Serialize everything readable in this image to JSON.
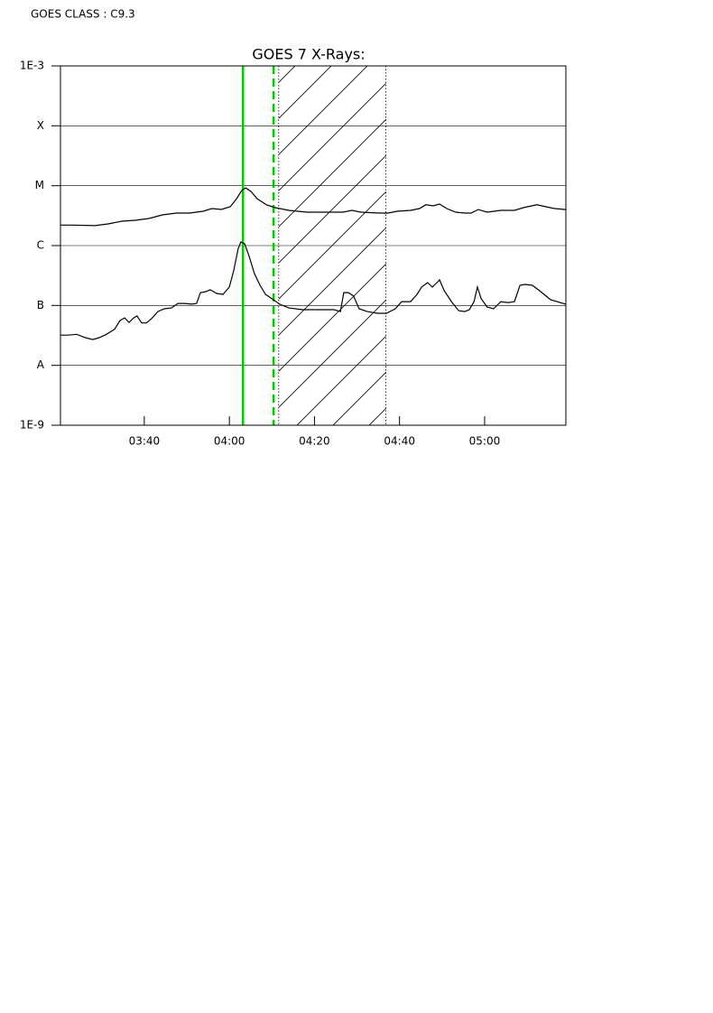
{
  "chart_data": {
    "type": "line",
    "annotation": "GOES CLASS : C9.3",
    "title": "GOES 7 X-Rays:",
    "log_y": true,
    "grid": true,
    "xlim": [
      200.3,
      319.1
    ],
    "xticks": [
      {
        "value": 220,
        "label": "03:40"
      },
      {
        "value": 240,
        "label": "04:00"
      },
      {
        "value": 260,
        "label": "04:20"
      },
      {
        "value": 280,
        "label": "04:40"
      },
      {
        "value": 300,
        "label": "05:00"
      }
    ],
    "ylim": [
      1e-09,
      0.001
    ],
    "yticks": [
      {
        "value": 1e-09,
        "label": "1E-9"
      },
      {
        "value": 1e-08,
        "label": "A"
      },
      {
        "value": 1e-07,
        "label": "B"
      },
      {
        "value": 1e-06,
        "label": "C"
      },
      {
        "value": 1e-05,
        "label": "M"
      },
      {
        "value": 0.0001,
        "label": "X"
      },
      {
        "value": 0.001,
        "label": "1E-3"
      }
    ],
    "vlines": [
      {
        "x": 243.2,
        "color": "#00cc00",
        "style": "solid"
      },
      {
        "x": 250.4,
        "color": "#00cc00",
        "style": "dashed"
      }
    ],
    "shaded_region": [
      251.6,
      276.8
    ],
    "series": [
      {
        "color": "#000000",
        "x": [
          200.3,
          203.1,
          208.4,
          211.5,
          214.7,
          217.9,
          221.1,
          224.3,
          227.5,
          230.6,
          233.8,
          235.9,
          238.1,
          240.2,
          241.7,
          242.9,
          243.8,
          245.1,
          246.5,
          248.7,
          250.8,
          254.0,
          258.2,
          262.5,
          266.7,
          268.8,
          270.9,
          275.2,
          277.3,
          279.4,
          282.6,
          284.7,
          286.2,
          287.9,
          289.4,
          291.1,
          293.2,
          295.3,
          296.8,
          298.5,
          300.6,
          303.8,
          307.0,
          309.1,
          312.3,
          314.4,
          316.5,
          319.1
        ],
        "values": [
          2.2e-06,
          2.2e-06,
          2.15e-06,
          2.3e-06,
          2.55e-06,
          2.64e-06,
          2.83e-06,
          3.26e-06,
          3.49e-06,
          3.49e-06,
          3.74e-06,
          4.15e-06,
          4.01e-06,
          4.45e-06,
          6.08e-06,
          8.32e-06,
          9.2e-06,
          8e-06,
          6.08e-06,
          4.8e-06,
          4.3e-06,
          3.87e-06,
          3.61e-06,
          3.61e-06,
          3.61e-06,
          3.87e-06,
          3.61e-06,
          3.49e-06,
          3.49e-06,
          3.74e-06,
          3.87e-06,
          4.15e-06,
          4.8e-06,
          4.6e-06,
          4.94e-06,
          4.15e-06,
          3.61e-06,
          3.49e-06,
          3.49e-06,
          4e-06,
          3.61e-06,
          3.87e-06,
          3.87e-06,
          4.3e-06,
          4.8e-06,
          4.45e-06,
          4.15e-06,
          4e-06
        ]
      },
      {
        "color": "#000000",
        "x": [
          200.3,
          202.0,
          204.1,
          206.2,
          207.9,
          209.4,
          211.1,
          213.0,
          214.3,
          215.4,
          216.4,
          217.5,
          218.3,
          219.4,
          220.5,
          221.7,
          223.2,
          224.7,
          226.4,
          227.9,
          229.6,
          231.1,
          232.3,
          233.2,
          234.5,
          235.5,
          237.0,
          238.5,
          240.0,
          241.0,
          242.1,
          242.7,
          243.6,
          244.6,
          245.9,
          247.2,
          248.5,
          249.7,
          251.8,
          254.0,
          257.2,
          260.3,
          264.6,
          266.1,
          266.9,
          268.0,
          269.2,
          270.5,
          272.4,
          274.8,
          276.9,
          279.0,
          280.5,
          282.6,
          284.1,
          285.2,
          286.6,
          287.7,
          288.8,
          289.4,
          290.5,
          292.2,
          293.9,
          295.3,
          296.4,
          297.5,
          298.3,
          299.2,
          300.6,
          302.1,
          303.8,
          305.5,
          307.0,
          308.3,
          309.5,
          311.2,
          312.9,
          315.5,
          319.1
        ],
        "values": [
          3.2e-08,
          3.2e-08,
          3.3e-08,
          2.9e-08,
          2.7e-08,
          2.9e-08,
          3.3e-08,
          4e-08,
          5.6e-08,
          6.2e-08,
          5.2e-08,
          6.2e-08,
          6.7e-08,
          5.1e-08,
          5.1e-08,
          6e-08,
          7.9e-08,
          8.8e-08,
          9.1e-08,
          1.08e-07,
          1.08e-07,
          1.05e-07,
          1.08e-07,
          1.64e-07,
          1.7e-07,
          1.83e-07,
          1.59e-07,
          1.53e-07,
          2.03e-07,
          3.78e-07,
          9e-07,
          1.15e-06,
          1.07e-06,
          6.8e-07,
          3.41e-07,
          2.17e-07,
          1.53e-07,
          1.34e-07,
          1.05e-07,
          9.1e-08,
          8.5e-08,
          8.5e-08,
          8.5e-08,
          7.9e-08,
          1.64e-07,
          1.64e-07,
          1.43e-07,
          8.8e-08,
          7.9e-08,
          7.4e-08,
          7.4e-08,
          8.8e-08,
          1.16e-07,
          1.16e-07,
          1.53e-07,
          2.03e-07,
          2.41e-07,
          2.03e-07,
          2.41e-07,
          2.67e-07,
          1.76e-07,
          1.16e-07,
          8.2e-08,
          7.9e-08,
          8.5e-08,
          1.16e-07,
          2.03e-07,
          1.29e-07,
          9.4e-08,
          8.8e-08,
          1.16e-07,
          1.12e-07,
          1.16e-07,
          2.17e-07,
          2.25e-07,
          2.17e-07,
          1.76e-07,
          1.25e-07,
          1.05e-07
        ]
      }
    ]
  }
}
